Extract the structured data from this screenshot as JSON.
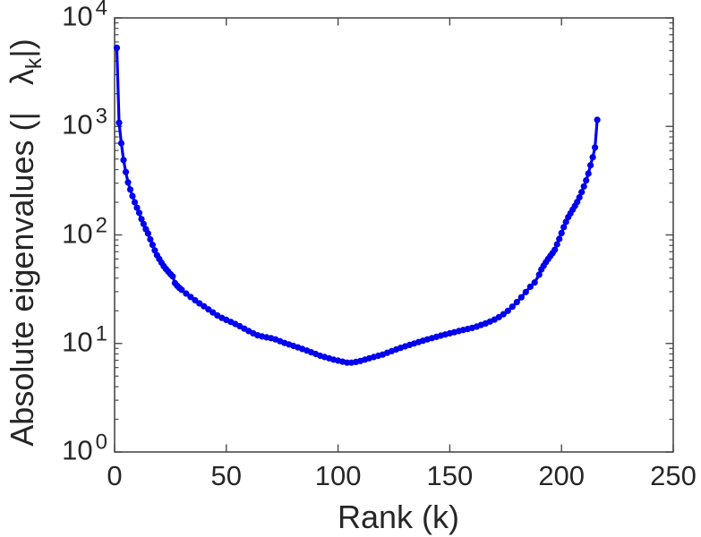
{
  "figure": {
    "background_color": "#ffffff"
  },
  "chart_data": {
    "type": "line",
    "title": "",
    "xlabel": "Rank (k)",
    "ylabel": {
      "prefix": "Absolute eigenvalues (|",
      "symbol": "λ",
      "subscript": "k",
      "suffix": "|)"
    },
    "x_axis": {
      "min": 0,
      "max": 250,
      "ticks": [
        0,
        50,
        100,
        150,
        200,
        250
      ]
    },
    "y_axis": {
      "scale": "log",
      "min_exponent": 0,
      "max_exponent": 4,
      "tick_base": "10",
      "tick_exponents": [
        0,
        1,
        2,
        3,
        4
      ],
      "minor_multiples": [
        2,
        3,
        4,
        5,
        6,
        7,
        8,
        9
      ]
    },
    "grid": false,
    "legend": null,
    "box": true,
    "axis_color": "#4a4a4a",
    "text_color": "#262626",
    "series": [
      {
        "name": "absolute-eigenvalues",
        "color": "#0000ee",
        "marker": "circle",
        "line_style": "solid",
        "points": [
          [
            1,
            5300
          ],
          [
            2,
            1080
          ],
          [
            3,
            700
          ],
          [
            4,
            490
          ],
          [
            5,
            380
          ],
          [
            6,
            305
          ],
          [
            7,
            262
          ],
          [
            8,
            228
          ],
          [
            9,
            200
          ],
          [
            10,
            178
          ],
          [
            11,
            160
          ],
          [
            12,
            140
          ],
          [
            13,
            126
          ],
          [
            14,
            113
          ],
          [
            15,
            103
          ],
          [
            16,
            91
          ],
          [
            17,
            81
          ],
          [
            18,
            72
          ],
          [
            19,
            65
          ],
          [
            20,
            60
          ],
          [
            21,
            55.5
          ],
          [
            22,
            51.5
          ],
          [
            23,
            48.5
          ],
          [
            24,
            46
          ],
          [
            25,
            43.5
          ],
          [
            26,
            41.5
          ],
          [
            27,
            36
          ],
          [
            28,
            34
          ],
          [
            29,
            32.5
          ],
          [
            30,
            31.2
          ],
          [
            32,
            28.8
          ],
          [
            34,
            26.8
          ],
          [
            36,
            25
          ],
          [
            38,
            23.4
          ],
          [
            40,
            22
          ],
          [
            42,
            20.6
          ],
          [
            44,
            19.3
          ],
          [
            46,
            18.1
          ],
          [
            48,
            17.2
          ],
          [
            50,
            16.5
          ],
          [
            52,
            15.8
          ],
          [
            54,
            15.1
          ],
          [
            56,
            14.4
          ],
          [
            58,
            13.7
          ],
          [
            60,
            13
          ],
          [
            62,
            12.4
          ],
          [
            64,
            11.9
          ],
          [
            66,
            11.6
          ],
          [
            68,
            11.4
          ],
          [
            70,
            11.2
          ],
          [
            72,
            10.9
          ],
          [
            74,
            10.5
          ],
          [
            76,
            10.1
          ],
          [
            78,
            9.8
          ],
          [
            80,
            9.5
          ],
          [
            82,
            9.2
          ],
          [
            84,
            8.9
          ],
          [
            86,
            8.6
          ],
          [
            88,
            8.3
          ],
          [
            90,
            8
          ],
          [
            92,
            7.7
          ],
          [
            94,
            7.5
          ],
          [
            96,
            7.3
          ],
          [
            98,
            7.1
          ],
          [
            100,
            6.95
          ],
          [
            102,
            6.8
          ],
          [
            104,
            6.65
          ],
          [
            106,
            6.65
          ],
          [
            108,
            6.75
          ],
          [
            110,
            6.9
          ],
          [
            112,
            7.1
          ],
          [
            114,
            7.3
          ],
          [
            116,
            7.5
          ],
          [
            118,
            7.7
          ],
          [
            120,
            7.9
          ],
          [
            122,
            8.2
          ],
          [
            124,
            8.5
          ],
          [
            126,
            8.8
          ],
          [
            128,
            9.1
          ],
          [
            130,
            9.4
          ],
          [
            132,
            9.7
          ],
          [
            134,
            10
          ],
          [
            136,
            10.3
          ],
          [
            138,
            10.6
          ],
          [
            140,
            10.9
          ],
          [
            142,
            11.2
          ],
          [
            144,
            11.5
          ],
          [
            146,
            11.8
          ],
          [
            148,
            12.1
          ],
          [
            150,
            12.4
          ],
          [
            152,
            12.7
          ],
          [
            154,
            13
          ],
          [
            156,
            13.3
          ],
          [
            158,
            13.6
          ],
          [
            160,
            13.9
          ],
          [
            162,
            14.3
          ],
          [
            164,
            14.8
          ],
          [
            166,
            15.3
          ],
          [
            168,
            15.9
          ],
          [
            170,
            16.6
          ],
          [
            172,
            17.5
          ],
          [
            174,
            18.6
          ],
          [
            176,
            20
          ],
          [
            178,
            21.8
          ],
          [
            180,
            24
          ],
          [
            182,
            26.6
          ],
          [
            184,
            29.8
          ],
          [
            186,
            33.3
          ],
          [
            188,
            36.5
          ],
          [
            190,
            43
          ],
          [
            191,
            48
          ],
          [
            192,
            52
          ],
          [
            193,
            56
          ],
          [
            194,
            60
          ],
          [
            195,
            64
          ],
          [
            196,
            68
          ],
          [
            197,
            73
          ],
          [
            198,
            82
          ],
          [
            199,
            92
          ],
          [
            200,
            104
          ],
          [
            201,
            118
          ],
          [
            202,
            132
          ],
          [
            203,
            146
          ],
          [
            204,
            158
          ],
          [
            205,
            171
          ],
          [
            206,
            185
          ],
          [
            207,
            201
          ],
          [
            208,
            222
          ],
          [
            209,
            248
          ],
          [
            210,
            280
          ],
          [
            211,
            318
          ],
          [
            212,
            368
          ],
          [
            213,
            438
          ],
          [
            214,
            520
          ],
          [
            215,
            640
          ],
          [
            216,
            1150
          ]
        ]
      }
    ]
  }
}
